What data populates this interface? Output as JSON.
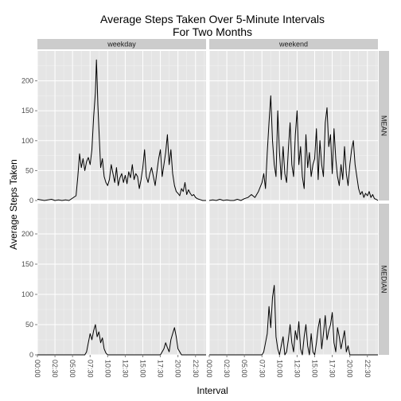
{
  "chart_data": {
    "type": "line",
    "title": [
      "Average Steps Taken Over 5-Minute Intervals",
      "For Two Months"
    ],
    "xlabel": "Interval",
    "ylabel": "Average Steps Taken",
    "xlim": [
      0,
      24
    ],
    "ylim": [
      0,
      250
    ],
    "x_ticks": [
      "00:00",
      "02:30",
      "05:00",
      "07:30",
      "10:00",
      "12:30",
      "15:00",
      "17:30",
      "20:00",
      "22:30"
    ],
    "y_ticks": [
      0,
      50,
      100,
      150,
      200
    ],
    "grid": true,
    "facet_columns": [
      "weekday",
      "weekend"
    ],
    "facet_rows": [
      "MEAN",
      "MEDIAN"
    ],
    "series": {
      "weekday_mean": {
        "x": [
          0,
          0.5,
          1,
          1.5,
          2,
          2.5,
          3,
          3.5,
          4,
          4.5,
          5,
          5.5,
          5.75,
          6,
          6.25,
          6.5,
          6.75,
          7,
          7.25,
          7.5,
          7.75,
          8,
          8.25,
          8.4,
          8.5,
          8.6,
          8.75,
          9,
          9.25,
          9.5,
          9.75,
          10,
          10.25,
          10.5,
          10.75,
          11,
          11.25,
          11.5,
          11.75,
          12,
          12.25,
          12.5,
          12.75,
          13,
          13.25,
          13.5,
          13.75,
          14,
          14.25,
          14.5,
          14.75,
          15,
          15.25,
          15.5,
          15.75,
          16,
          16.25,
          16.5,
          16.75,
          17,
          17.25,
          17.5,
          17.75,
          18,
          18.25,
          18.5,
          18.75,
          19,
          19.25,
          19.5,
          19.75,
          20,
          20.25,
          20.5,
          20.75,
          21,
          21.25,
          21.5,
          21.75,
          22,
          22.25,
          22.5,
          22.75,
          23,
          23.25,
          23.5,
          24
        ],
        "y": [
          2,
          1,
          0,
          1,
          2,
          0,
          1,
          0,
          1,
          0,
          4,
          8,
          40,
          78,
          55,
          70,
          50,
          65,
          72,
          60,
          85,
          140,
          180,
          235,
          200,
          160,
          120,
          55,
          70,
          40,
          30,
          25,
          35,
          60,
          45,
          30,
          55,
          25,
          38,
          45,
          30,
          42,
          28,
          48,
          38,
          60,
          35,
          45,
          40,
          20,
          35,
          55,
          85,
          40,
          30,
          45,
          55,
          40,
          25,
          48,
          70,
          85,
          40,
          60,
          80,
          110,
          60,
          85,
          45,
          25,
          15,
          12,
          8,
          20,
          15,
          30,
          10,
          18,
          12,
          8,
          10,
          5,
          3,
          2,
          1,
          0,
          0
        ]
      },
      "weekend_mean": {
        "x": [
          0,
          0.5,
          1,
          1.5,
          2,
          2.5,
          3,
          3.5,
          4,
          4.5,
          5,
          5.5,
          6,
          6.5,
          7,
          7.5,
          7.75,
          8,
          8.25,
          8.5,
          8.75,
          9,
          9.25,
          9.5,
          9.75,
          10,
          10.25,
          10.5,
          10.75,
          11,
          11.25,
          11.5,
          11.75,
          12,
          12.25,
          12.5,
          12.75,
          13,
          13.25,
          13.5,
          13.75,
          14,
          14.25,
          14.5,
          14.75,
          15,
          15.25,
          15.5,
          15.75,
          16,
          16.25,
          16.5,
          16.75,
          17,
          17.25,
          17.5,
          17.75,
          18,
          18.25,
          18.5,
          18.75,
          19,
          19.25,
          19.5,
          19.75,
          20,
          20.25,
          20.5,
          20.75,
          21,
          21.25,
          21.5,
          21.75,
          22,
          22.25,
          22.5,
          22.75,
          23,
          23.25,
          23.5,
          23.75,
          24
        ],
        "y": [
          0,
          1,
          0,
          2,
          0,
          1,
          0,
          0,
          2,
          0,
          3,
          5,
          10,
          5,
          15,
          30,
          45,
          20,
          80,
          130,
          175,
          100,
          60,
          40,
          150,
          80,
          35,
          90,
          45,
          30,
          85,
          130,
          60,
          40,
          110,
          150,
          60,
          90,
          40,
          20,
          110,
          55,
          80,
          40,
          60,
          70,
          120,
          35,
          100,
          60,
          40,
          130,
          155,
          90,
          110,
          45,
          120,
          70,
          40,
          25,
          60,
          35,
          90,
          45,
          25,
          60,
          85,
          100,
          60,
          40,
          20,
          10,
          15,
          5,
          12,
          8,
          15,
          5,
          10,
          3,
          2,
          0
        ]
      },
      "weekday_median": {
        "x": [
          0,
          1,
          2,
          3,
          4,
          5,
          6,
          6.5,
          6.75,
          7,
          7.25,
          7.5,
          7.75,
          8,
          8.25,
          8.5,
          8.75,
          9,
          9.25,
          9.5,
          9.75,
          10,
          10.5,
          11,
          12,
          13,
          14,
          15,
          16,
          17,
          17.5,
          17.75,
          18,
          18.25,
          18.5,
          18.75,
          19,
          19.25,
          19.5,
          19.75,
          20,
          20.5,
          21,
          22,
          23,
          24
        ],
        "y": [
          0,
          0,
          0,
          0,
          0,
          0,
          0,
          0,
          0,
          5,
          20,
          35,
          25,
          40,
          50,
          30,
          38,
          20,
          28,
          10,
          3,
          0,
          0,
          0,
          0,
          0,
          0,
          0,
          0,
          0,
          0,
          5,
          10,
          20,
          12,
          5,
          25,
          35,
          45,
          30,
          10,
          0,
          0,
          0,
          0,
          0
        ]
      },
      "weekend_median": {
        "x": [
          0,
          1,
          2,
          3,
          4,
          5,
          6,
          7,
          7.5,
          7.75,
          8,
          8.25,
          8.5,
          8.75,
          9,
          9.25,
          9.5,
          9.75,
          10,
          10.25,
          10.5,
          10.75,
          11,
          11.25,
          11.5,
          11.75,
          12,
          12.25,
          12.5,
          12.75,
          13,
          13.25,
          13.5,
          13.75,
          14,
          14.25,
          14.5,
          14.75,
          15,
          15.25,
          15.5,
          15.75,
          16,
          16.25,
          16.5,
          16.75,
          17,
          17.25,
          17.5,
          17.75,
          18,
          18.25,
          18.5,
          18.75,
          19,
          19.25,
          19.5,
          19.75,
          20,
          20.5,
          21,
          22,
          23,
          24
        ],
        "y": [
          0,
          0,
          0,
          0,
          0,
          0,
          0,
          0,
          0,
          5,
          20,
          35,
          80,
          45,
          95,
          115,
          30,
          10,
          0,
          15,
          30,
          0,
          5,
          25,
          50,
          20,
          5,
          40,
          25,
          55,
          10,
          0,
          30,
          50,
          15,
          0,
          35,
          5,
          0,
          20,
          45,
          60,
          10,
          35,
          65,
          25,
          40,
          50,
          70,
          20,
          5,
          45,
          30,
          10,
          25,
          40,
          5,
          15,
          0,
          0,
          0,
          0,
          0,
          0
        ]
      }
    }
  }
}
